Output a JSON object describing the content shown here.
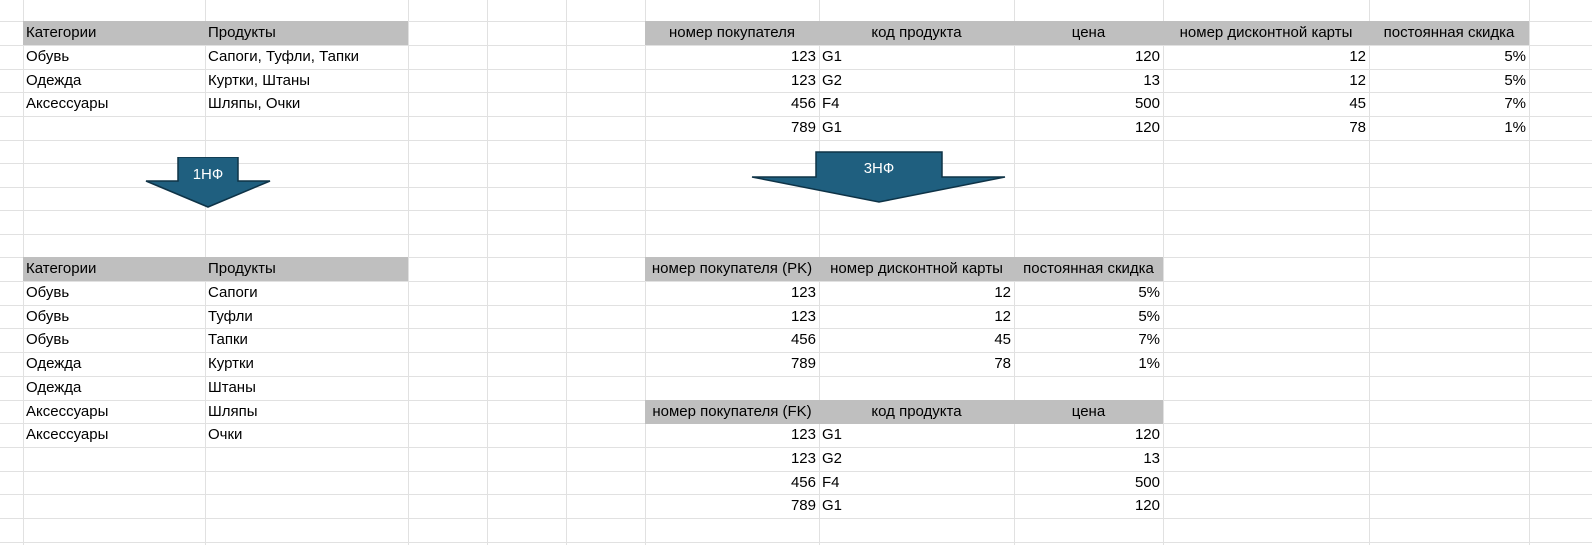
{
  "top_left": {
    "headers": [
      "Категории",
      "Продукты"
    ],
    "rows": [
      [
        "Обувь",
        "Сапоги, Туфли, Тапки"
      ],
      [
        "Одежда",
        "Куртки, Штаны"
      ],
      [
        "Аксессуары",
        "Шляпы, Очки"
      ]
    ]
  },
  "arrow_1nf": {
    "label": "1НФ",
    "color": "#1f5f7f"
  },
  "bottom_left": {
    "headers": [
      "Категории",
      "Продукты"
    ],
    "rows": [
      [
        "Обувь",
        "Сапоги"
      ],
      [
        "Обувь",
        "Туфли"
      ],
      [
        "Обувь",
        "Тапки"
      ],
      [
        "Одежда",
        "Куртки"
      ],
      [
        "Одежда",
        "Штаны"
      ],
      [
        "Аксессуары",
        "Шляпы"
      ],
      [
        "Аксессуары",
        "Очки"
      ]
    ]
  },
  "top_right": {
    "headers": [
      "номер покупателя",
      "код продукта",
      "цена",
      "номер дисконтной карты",
      "постоянная скидка"
    ],
    "rows": [
      [
        "123",
        "G1",
        "120",
        "12",
        "5%"
      ],
      [
        "123",
        "G2",
        "13",
        "12",
        "5%"
      ],
      [
        "456",
        "F4",
        "500",
        "45",
        "7%"
      ],
      [
        "789",
        "G1",
        "120",
        "78",
        "1%"
      ]
    ]
  },
  "arrow_3nf": {
    "label": "3НФ",
    "color": "#1f5f7f"
  },
  "mid_right": {
    "headers": [
      "номер покупателя (PK)",
      "номер дисконтной карты",
      "постоянная скидка"
    ],
    "rows": [
      [
        "123",
        "12",
        "5%"
      ],
      [
        "123",
        "12",
        "5%"
      ],
      [
        "456",
        "45",
        "7%"
      ],
      [
        "789",
        "78",
        "1%"
      ]
    ]
  },
  "bottom_right": {
    "headers": [
      "номер покупателя (FK)",
      "код продукта",
      "цена"
    ],
    "rows": [
      [
        "123",
        "G1",
        "120"
      ],
      [
        "123",
        "G2",
        "13"
      ],
      [
        "456",
        "F4",
        "500"
      ],
      [
        "789",
        "G1",
        "120"
      ]
    ]
  }
}
